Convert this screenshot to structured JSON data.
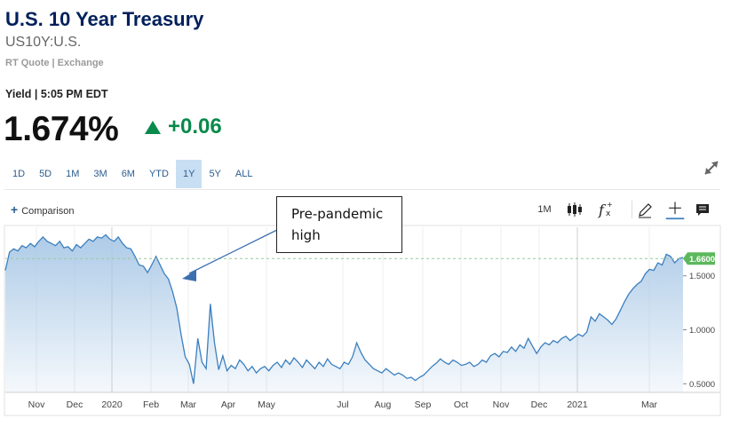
{
  "header": {
    "title": "U.S. 10 Year Treasury",
    "symbol": "US10Y:U.S.",
    "quote_type": "RT Quote | Exchange",
    "yield_label": "Yield | 5:05 PM EDT",
    "value": "1.674%",
    "change": "+0.06",
    "change_color": "#0a8a4c"
  },
  "ranges": [
    {
      "label": "1D",
      "active": false
    },
    {
      "label": "5D",
      "active": false
    },
    {
      "label": "1M",
      "active": false
    },
    {
      "label": "3M",
      "active": false
    },
    {
      "label": "6M",
      "active": false
    },
    {
      "label": "YTD",
      "active": false
    },
    {
      "label": "1Y",
      "active": true
    },
    {
      "label": "5Y",
      "active": false
    },
    {
      "label": "ALL",
      "active": false
    }
  ],
  "toolbar": {
    "comparison_label": "Comparison",
    "interval_label": "1M",
    "icons": [
      "candlestick-icon",
      "function-icon",
      "pencil-icon",
      "crosshair-icon",
      "comment-icon"
    ]
  },
  "annotation": {
    "line1": "Pre-pandemic",
    "line2": "high"
  },
  "chart_data": {
    "type": "area",
    "title": "",
    "xlabel": "",
    "ylabel": "",
    "x_tick_labels": [
      "Nov",
      "Dec",
      "2020",
      "Feb",
      "Mar",
      "Apr",
      "May",
      "Jul",
      "Aug",
      "Sep",
      "Oct",
      "Nov",
      "Dec",
      "2021",
      "Mar"
    ],
    "y_tick_labels": [
      "1.5000",
      "1.0000",
      "0.5000"
    ],
    "y_ticks": [
      1.5,
      1.0,
      0.5
    ],
    "ylim": [
      0.42,
      1.95
    ],
    "current_value_label": "1.6600",
    "current_value": 1.66,
    "series_color": "#3b7fbf",
    "fill_color": "#a9c8e6",
    "reference_line_color": "#9cc79a",
    "grid": "vertical",
    "series": [
      {
        "values": [
          1.55,
          1.72,
          1.75,
          1.73,
          1.78,
          1.76,
          1.8,
          1.77,
          1.82,
          1.86,
          1.82,
          1.8,
          1.78,
          1.82,
          1.76,
          1.77,
          1.73,
          1.79,
          1.76,
          1.8,
          1.84,
          1.82,
          1.86,
          1.85,
          1.88,
          1.84,
          1.82,
          1.86,
          1.8,
          1.76,
          1.75,
          1.68,
          1.6,
          1.59,
          1.53,
          1.6,
          1.68,
          1.6,
          1.52,
          1.47,
          1.35,
          1.2,
          0.96,
          0.75,
          0.68,
          0.5,
          0.92,
          0.7,
          0.64,
          1.24,
          0.88,
          0.63,
          0.76,
          0.62,
          0.67,
          0.64,
          0.72,
          0.68,
          0.62,
          0.66,
          0.6,
          0.64,
          0.66,
          0.62,
          0.67,
          0.7,
          0.65,
          0.72,
          0.68,
          0.74,
          0.7,
          0.65,
          0.72,
          0.68,
          0.64,
          0.7,
          0.66,
          0.73,
          0.68,
          0.66,
          0.64,
          0.7,
          0.68,
          0.75,
          0.88,
          0.79,
          0.72,
          0.68,
          0.64,
          0.62,
          0.6,
          0.64,
          0.61,
          0.58,
          0.6,
          0.58,
          0.55,
          0.56,
          0.53,
          0.56,
          0.58,
          0.62,
          0.66,
          0.69,
          0.73,
          0.7,
          0.68,
          0.72,
          0.7,
          0.67,
          0.68,
          0.7,
          0.66,
          0.68,
          0.72,
          0.7,
          0.76,
          0.78,
          0.75,
          0.8,
          0.79,
          0.84,
          0.8,
          0.86,
          0.83,
          0.92,
          0.85,
          0.78,
          0.84,
          0.88,
          0.86,
          0.9,
          0.88,
          0.92,
          0.94,
          0.9,
          0.93,
          0.96,
          0.94,
          0.98,
          1.12,
          1.08,
          1.15,
          1.12,
          1.09,
          1.05,
          1.1,
          1.18,
          1.26,
          1.33,
          1.38,
          1.42,
          1.45,
          1.52,
          1.56,
          1.55,
          1.62,
          1.6,
          1.7,
          1.68,
          1.62,
          1.66,
          1.67
        ]
      }
    ]
  }
}
